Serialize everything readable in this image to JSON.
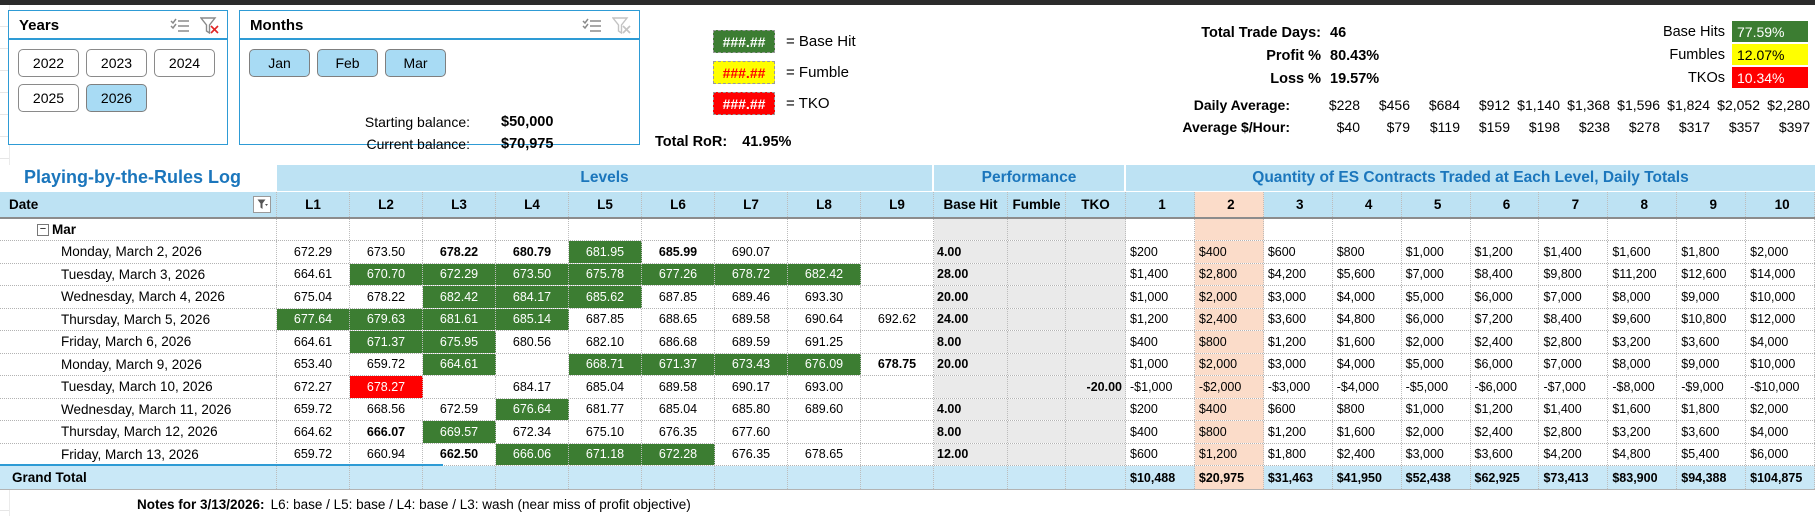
{
  "slicers": {
    "years": {
      "title": "Years",
      "options": [
        {
          "label": "2022",
          "selected": false
        },
        {
          "label": "2023",
          "selected": false
        },
        {
          "label": "2024",
          "selected": false
        },
        {
          "label": "2025",
          "selected": false
        },
        {
          "label": "2026",
          "selected": true
        }
      ]
    },
    "months": {
      "title": "Months",
      "options": [
        {
          "label": "Jan",
          "selected": true
        },
        {
          "label": "Feb",
          "selected": true
        },
        {
          "label": "Mar",
          "selected": true
        }
      ]
    }
  },
  "legend": {
    "items": [
      {
        "swatch": "###.##",
        "label": "= Base Hit",
        "bg": "#3C7D32",
        "fg": "#FFFFFF"
      },
      {
        "swatch": "###.##",
        "label": "= Fumble",
        "bg": "#FFFF00",
        "fg": "#FF0000"
      },
      {
        "swatch": "###.##",
        "label": "= TKO",
        "bg": "#FF0000",
        "fg": "#FFFFFF"
      }
    ]
  },
  "balances": {
    "starting_label": "Starting balance:",
    "starting_value": "$50,000",
    "current_label": "Current balance:",
    "current_value": "$70,975",
    "ror_label": "Total RoR:",
    "ror_value": "41.95%"
  },
  "stats": {
    "left_rows": [
      {
        "label": "Total Trade Days:",
        "value": "46"
      },
      {
        "label": "Profit %",
        "value": "80.43%"
      },
      {
        "label": "Loss %",
        "value": "19.57%"
      }
    ],
    "right_rows": [
      {
        "label": "Base Hits",
        "value": "77.59%",
        "bg": "#3C7D32",
        "fg": "#FFFFFF"
      },
      {
        "label": "Fumbles",
        "value": "12.07%",
        "bg": "#FFFF00",
        "fg": "#000000"
      },
      {
        "label": "TKOs",
        "value": "10.34%",
        "bg": "#FF0000",
        "fg": "#FFFFFF"
      }
    ]
  },
  "averages": {
    "daily_label": "Daily Average:",
    "daily_values": [
      "$228",
      "$456",
      "$684",
      "$912",
      "$1,140",
      "$1,368",
      "$1,596",
      "$1,824",
      "$2,052",
      "$2,280"
    ],
    "hourly_label": "Average $/Hour:",
    "hourly_values": [
      "$40",
      "$79",
      "$119",
      "$159",
      "$198",
      "$238",
      "$278",
      "$317",
      "$357",
      "$397"
    ]
  },
  "table": {
    "title": "Playing-by-the-Rules Log",
    "band_levels": "Levels",
    "band_performance": "Performance",
    "band_quantity": "Quantity of ES Contracts Traded at Each Level, Daily Totals",
    "date_header": "Date",
    "level_headers": [
      "L1",
      "L2",
      "L3",
      "L4",
      "L5",
      "L6",
      "L7",
      "L8",
      "L9"
    ],
    "perf_headers": [
      "Base Hit",
      "Fumble",
      "TKO"
    ],
    "qty_headers": [
      "1",
      "2",
      "3",
      "4",
      "5",
      "6",
      "7",
      "8",
      "9",
      "10"
    ],
    "highlight_qty_column": "2",
    "group_label": "Mar",
    "rows": [
      {
        "date": "Monday, March 2, 2026",
        "levels": [
          [
            "672.29",
            ""
          ],
          [
            "673.50",
            ""
          ],
          [
            "678.22",
            "b"
          ],
          [
            "680.79",
            "b"
          ],
          [
            "681.95",
            "g"
          ],
          [
            "685.99",
            "b"
          ],
          [
            "690.07",
            ""
          ],
          [
            "",
            ""
          ],
          [
            "",
            ""
          ]
        ],
        "base_hit": "4.00",
        "fumble": "",
        "tko": "",
        "qty": [
          "$200",
          "$400",
          "$600",
          "$800",
          "$1,000",
          "$1,200",
          "$1,400",
          "$1,600",
          "$1,800",
          "$2,000"
        ]
      },
      {
        "date": "Tuesday, March 3, 2026",
        "levels": [
          [
            "664.61",
            ""
          ],
          [
            "670.70",
            "g"
          ],
          [
            "672.29",
            "g"
          ],
          [
            "673.50",
            "g"
          ],
          [
            "675.78",
            "g"
          ],
          [
            "677.26",
            "g"
          ],
          [
            "678.72",
            "g"
          ],
          [
            "682.42",
            "g"
          ],
          [
            "",
            ""
          ]
        ],
        "base_hit": "28.00",
        "fumble": "",
        "tko": "",
        "qty": [
          "$1,400",
          "$2,800",
          "$4,200",
          "$5,600",
          "$7,000",
          "$8,400",
          "$9,800",
          "$11,200",
          "$12,600",
          "$14,000"
        ]
      },
      {
        "date": "Wednesday, March 4, 2026",
        "levels": [
          [
            "675.04",
            ""
          ],
          [
            "678.22",
            ""
          ],
          [
            "682.42",
            "g"
          ],
          [
            "684.17",
            "g"
          ],
          [
            "685.62",
            "g"
          ],
          [
            "687.85",
            ""
          ],
          [
            "689.46",
            ""
          ],
          [
            "693.30",
            ""
          ],
          [
            "",
            ""
          ]
        ],
        "base_hit": "20.00",
        "fumble": "",
        "tko": "",
        "qty": [
          "$1,000",
          "$2,000",
          "$3,000",
          "$4,000",
          "$5,000",
          "$6,000",
          "$7,000",
          "$8,000",
          "$9,000",
          "$10,000"
        ]
      },
      {
        "date": "Thursday, March 5, 2026",
        "levels": [
          [
            "677.64",
            "g"
          ],
          [
            "679.63",
            "g"
          ],
          [
            "681.61",
            "g"
          ],
          [
            "685.14",
            "g"
          ],
          [
            "687.85",
            ""
          ],
          [
            "688.65",
            ""
          ],
          [
            "689.58",
            ""
          ],
          [
            "690.64",
            ""
          ],
          [
            "692.62",
            ""
          ]
        ],
        "base_hit": "24.00",
        "fumble": "",
        "tko": "",
        "qty": [
          "$1,200",
          "$2,400",
          "$3,600",
          "$4,800",
          "$6,000",
          "$7,200",
          "$8,400",
          "$9,600",
          "$10,800",
          "$12,000"
        ]
      },
      {
        "date": "Friday, March 6, 2026",
        "levels": [
          [
            "664.61",
            ""
          ],
          [
            "671.37",
            "g"
          ],
          [
            "675.95",
            "g"
          ],
          [
            "680.56",
            ""
          ],
          [
            "682.10",
            ""
          ],
          [
            "686.68",
            ""
          ],
          [
            "689.59",
            ""
          ],
          [
            "691.25",
            ""
          ],
          [
            "",
            ""
          ]
        ],
        "base_hit": "8.00",
        "fumble": "",
        "tko": "",
        "qty": [
          "$400",
          "$800",
          "$1,200",
          "$1,600",
          "$2,000",
          "$2,400",
          "$2,800",
          "$3,200",
          "$3,600",
          "$4,000"
        ]
      },
      {
        "date": "Monday, March 9, 2026",
        "levels": [
          [
            "653.40",
            ""
          ],
          [
            "659.72",
            ""
          ],
          [
            "664.61",
            "g"
          ],
          [
            "",
            ""
          ],
          [
            "668.71",
            "g"
          ],
          [
            "671.37",
            "g"
          ],
          [
            "673.43",
            "g"
          ],
          [
            "676.09",
            "g"
          ],
          [
            "678.75",
            "b"
          ]
        ],
        "base_hit": "20.00",
        "fumble": "",
        "tko": "",
        "qty": [
          "$1,000",
          "$2,000",
          "$3,000",
          "$4,000",
          "$5,000",
          "$6,000",
          "$7,000",
          "$8,000",
          "$9,000",
          "$10,000"
        ]
      },
      {
        "date": "Tuesday, March 10, 2026",
        "levels": [
          [
            "672.27",
            ""
          ],
          [
            "678.27",
            "r"
          ],
          [
            "",
            ""
          ],
          [
            "684.17",
            ""
          ],
          [
            "685.04",
            ""
          ],
          [
            "689.58",
            ""
          ],
          [
            "690.17",
            ""
          ],
          [
            "693.00",
            ""
          ],
          [
            "",
            ""
          ]
        ],
        "base_hit": "",
        "fumble": "",
        "tko": "-20.00",
        "qty": [
          "-$1,000",
          "-$2,000",
          "-$3,000",
          "-$4,000",
          "-$5,000",
          "-$6,000",
          "-$7,000",
          "-$8,000",
          "-$9,000",
          "-$10,000"
        ]
      },
      {
        "date": "Wednesday, March 11, 2026",
        "levels": [
          [
            "659.72",
            ""
          ],
          [
            "668.56",
            ""
          ],
          [
            "672.59",
            ""
          ],
          [
            "676.64",
            "g"
          ],
          [
            "681.77",
            ""
          ],
          [
            "685.04",
            ""
          ],
          [
            "685.80",
            ""
          ],
          [
            "689.60",
            ""
          ],
          [
            "",
            ""
          ]
        ],
        "base_hit": "4.00",
        "fumble": "",
        "tko": "",
        "qty": [
          "$200",
          "$400",
          "$600",
          "$800",
          "$1,000",
          "$1,200",
          "$1,400",
          "$1,600",
          "$1,800",
          "$2,000"
        ]
      },
      {
        "date": "Thursday, March 12, 2026",
        "levels": [
          [
            "664.62",
            ""
          ],
          [
            "666.07",
            "b"
          ],
          [
            "669.57",
            "g"
          ],
          [
            "672.34",
            ""
          ],
          [
            "675.10",
            ""
          ],
          [
            "676.35",
            ""
          ],
          [
            "677.60",
            ""
          ],
          [
            "",
            ""
          ],
          [
            "",
            ""
          ]
        ],
        "base_hit": "8.00",
        "fumble": "",
        "tko": "",
        "qty": [
          "$400",
          "$800",
          "$1,200",
          "$1,600",
          "$2,000",
          "$2,400",
          "$2,800",
          "$3,200",
          "$3,600",
          "$4,000"
        ]
      },
      {
        "date": "Friday, March 13, 2026",
        "levels": [
          [
            "659.72",
            ""
          ],
          [
            "660.94",
            ""
          ],
          [
            "662.50",
            "b"
          ],
          [
            "666.06",
            "g"
          ],
          [
            "671.18",
            "g"
          ],
          [
            "672.28",
            "g"
          ],
          [
            "676.35",
            ""
          ],
          [
            "678.65",
            ""
          ],
          [
            "",
            ""
          ]
        ],
        "base_hit": "12.00",
        "fumble": "",
        "tko": "",
        "qty": [
          "$600",
          "$1,200",
          "$1,800",
          "$2,400",
          "$3,000",
          "$3,600",
          "$4,200",
          "$4,800",
          "$5,400",
          "$6,000"
        ]
      }
    ],
    "grand_total_label": "Grand Total",
    "grand_total_qty": [
      "$10,488",
      "$20,975",
      "$31,463",
      "$41,950",
      "$52,438",
      "$62,925",
      "$73,413",
      "$83,900",
      "$94,388",
      "$104,875"
    ]
  },
  "notes": {
    "label": "Notes for 3/13/2026:",
    "text": "L6: base / L5: base / L4: base / L3: wash (near miss of profit objective)"
  },
  "colors": {
    "accent_blue": "#1B76BC",
    "header_fill": "#BDE2F3",
    "selected_slicer_fill": "#A8DBF4",
    "slicer_border": "#2E9BD5",
    "base_hit_green": "#3C7D32",
    "fumble_yellow": "#FFFF00",
    "tko_red": "#FF0000",
    "qty_col2_highlight": "#FBDCC9",
    "grand_total_fill": "#C9E8F7"
  }
}
